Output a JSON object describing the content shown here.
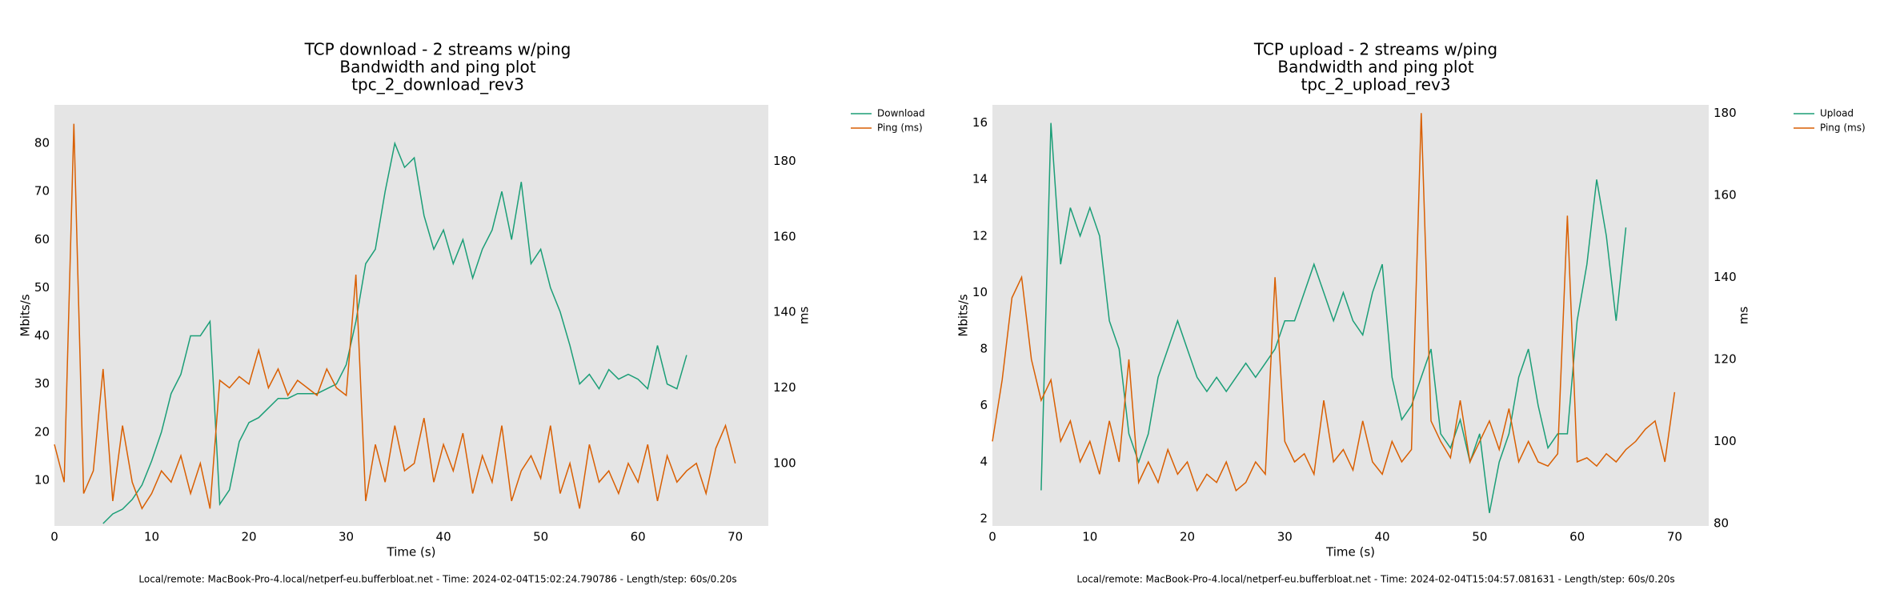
{
  "chart_data": [
    {
      "type": "line",
      "title_lines": [
        "TCP download - 2 streams w/ping",
        "Bandwidth and ping plot",
        "tpc_2_download_rev3"
      ],
      "xlabel": "Time (s)",
      "ylabel": "Mbits/s",
      "y2label": "ms",
      "footer": "Local/remote: MacBook-Pro-4.local/netperf-eu.bufferbloat.net - Time: 2024-02-04T15:02:24.790786 - Length/step: 60s/0.20s",
      "xlim": [
        0,
        73.4
      ],
      "xticks": [
        0,
        10,
        20,
        30,
        40,
        50,
        60,
        70
      ],
      "ylim": [
        0.5,
        88
      ],
      "yticks": [
        10,
        20,
        30,
        40,
        50,
        60,
        70,
        80
      ],
      "y2lim": [
        83.4,
        195
      ],
      "y2ticks": [
        100,
        120,
        140,
        160,
        180
      ],
      "grid": false,
      "legend": "outside right",
      "series": [
        {
          "name": "Download",
          "color": "#1b9e77",
          "x": [
            5,
            6,
            7,
            8,
            9,
            10,
            11,
            12,
            13,
            14,
            15,
            16,
            17,
            18,
            19,
            20,
            21,
            22,
            23,
            24,
            25,
            26,
            27,
            28,
            29,
            30,
            31,
            32,
            33,
            34,
            35,
            36,
            37,
            38,
            39,
            40,
            41,
            42,
            43,
            44,
            45,
            46,
            47,
            48,
            49,
            50,
            51,
            52,
            53,
            54,
            55,
            56,
            57,
            58,
            59,
            60,
            61,
            62,
            63,
            64,
            65
          ],
          "values": [
            1,
            3,
            4,
            6,
            9,
            14,
            20,
            28,
            32,
            40,
            40,
            43,
            5,
            8,
            18,
            22,
            23,
            25,
            27,
            27,
            28,
            28,
            28,
            29,
            30,
            34,
            43,
            55,
            58,
            70,
            80,
            75,
            77,
            65,
            58,
            62,
            55,
            60,
            52,
            58,
            62,
            70,
            60,
            72,
            55,
            58,
            50,
            45,
            38,
            30,
            32,
            29,
            33,
            31,
            32,
            31,
            29,
            38,
            30,
            29,
            36
          ]
        },
        {
          "name": "Ping (ms)",
          "color": "#d95f02",
          "axis": "y2",
          "x": [
            0,
            1,
            2,
            3,
            4,
            5,
            6,
            7,
            8,
            9,
            10,
            11,
            12,
            13,
            14,
            15,
            16,
            17,
            18,
            19,
            20,
            21,
            22,
            23,
            24,
            25,
            26,
            27,
            28,
            29,
            30,
            31,
            32,
            33,
            34,
            35,
            36,
            37,
            38,
            39,
            40,
            41,
            42,
            43,
            44,
            45,
            46,
            47,
            48,
            49,
            50,
            51,
            52,
            53,
            54,
            55,
            56,
            57,
            58,
            59,
            60,
            61,
            62,
            63,
            64,
            65,
            66,
            67,
            68,
            69,
            70
          ],
          "values": [
            105,
            95,
            190,
            92,
            98,
            125,
            90,
            110,
            95,
            88,
            92,
            98,
            95,
            102,
            92,
            100,
            88,
            122,
            120,
            123,
            121,
            130,
            120,
            125,
            118,
            122,
            120,
            118,
            125,
            120,
            118,
            150,
            90,
            105,
            95,
            110,
            98,
            100,
            112,
            95,
            105,
            98,
            108,
            92,
            102,
            95,
            110,
            90,
            98,
            102,
            96,
            110,
            92,
            100,
            88,
            105,
            95,
            98,
            92,
            100,
            95,
            105,
            90,
            102,
            95,
            98,
            100,
            92,
            104,
            110,
            100
          ]
        }
      ]
    },
    {
      "type": "line",
      "title_lines": [
        "TCP upload - 2 streams w/ping",
        "Bandwidth and ping plot",
        "tpc_2_upload_rev3"
      ],
      "xlabel": "Time (s)",
      "ylabel": "Mbits/s",
      "y2label": "ms",
      "footer": "Local/remote: MacBook-Pro-4.local/netperf-eu.bufferbloat.net - Time: 2024-02-04T15:04:57.081631 - Length/step: 60s/0.20s",
      "xlim": [
        0,
        73.5
      ],
      "xticks": [
        0,
        10,
        20,
        30,
        40,
        50,
        60,
        70
      ],
      "ylim": [
        1.74,
        16.64
      ],
      "yticks": [
        2,
        4,
        6,
        8,
        10,
        12,
        14,
        16
      ],
      "y2lim": [
        79.4,
        182
      ],
      "y2ticks": [
        80,
        100,
        120,
        140,
        160,
        180
      ],
      "grid": false,
      "legend": "outside right",
      "series": [
        {
          "name": "Upload",
          "color": "#1b9e77",
          "x": [
            5,
            6,
            7,
            8,
            9,
            10,
            11,
            12,
            13,
            14,
            15,
            16,
            17,
            18,
            19,
            20,
            21,
            22,
            23,
            24,
            25,
            26,
            27,
            28,
            29,
            30,
            31,
            32,
            33,
            34,
            35,
            36,
            37,
            38,
            39,
            40,
            41,
            42,
            43,
            44,
            45,
            46,
            47,
            48,
            49,
            50,
            51,
            52,
            53,
            54,
            55,
            56,
            57,
            58,
            59,
            60,
            61,
            62,
            63,
            64,
            65
          ],
          "values": [
            3,
            16,
            11,
            13,
            12,
            13,
            12,
            9,
            8,
            5,
            4,
            5,
            7,
            8,
            9,
            8,
            7,
            6.5,
            7,
            6.5,
            7,
            7.5,
            7,
            7.5,
            8,
            9,
            9,
            10,
            11,
            10,
            9,
            10,
            9,
            8.5,
            10,
            11,
            7,
            5.5,
            6,
            7,
            8,
            5,
            4.5,
            5.5,
            4,
            5,
            2.2,
            4,
            5,
            7,
            8,
            6,
            4.5,
            5,
            5,
            9,
            11,
            14,
            12,
            9,
            12.3
          ]
        },
        {
          "name": "Ping (ms)",
          "color": "#d95f02",
          "axis": "y2",
          "x": [
            0,
            1,
            2,
            3,
            4,
            5,
            6,
            7,
            8,
            9,
            10,
            11,
            12,
            13,
            14,
            15,
            16,
            17,
            18,
            19,
            20,
            21,
            22,
            23,
            24,
            25,
            26,
            27,
            28,
            29,
            30,
            31,
            32,
            33,
            34,
            35,
            36,
            37,
            38,
            39,
            40,
            41,
            42,
            43,
            44,
            45,
            46,
            47,
            48,
            49,
            50,
            51,
            52,
            53,
            54,
            55,
            56,
            57,
            58,
            59,
            60,
            61,
            62,
            63,
            64,
            65,
            66,
            67,
            68,
            69,
            70
          ],
          "values": [
            100,
            115,
            135,
            140,
            120,
            110,
            115,
            100,
            105,
            95,
            100,
            92,
            105,
            95,
            120,
            90,
            95,
            90,
            98,
            92,
            95,
            88,
            92,
            90,
            95,
            88,
            90,
            95,
            92,
            140,
            100,
            95,
            97,
            92,
            110,
            95,
            98,
            93,
            105,
            95,
            92,
            100,
            95,
            98,
            180,
            105,
            100,
            96,
            110,
            95,
            100,
            105,
            98,
            108,
            95,
            100,
            95,
            94,
            97,
            155,
            95,
            96,
            94,
            97,
            95,
            98,
            100,
            103,
            105,
            95,
            112
          ]
        }
      ]
    }
  ]
}
